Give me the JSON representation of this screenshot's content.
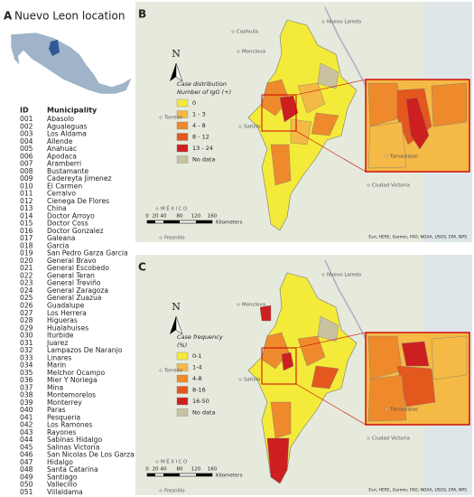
{
  "panel_a": {
    "label": "A",
    "title": "Nuevo Leon location",
    "table": {
      "header": [
        "ID",
        "Municipality"
      ],
      "rows": [
        [
          "001",
          "Abasolo"
        ],
        [
          "002",
          "Agualeguas"
        ],
        [
          "003",
          "Los Aldama"
        ],
        [
          "004",
          "Allende"
        ],
        [
          "005",
          "Anahuac"
        ],
        [
          "006",
          "Apodaca"
        ],
        [
          "007",
          "Aramberri"
        ],
        [
          "008",
          "Bustamante"
        ],
        [
          "009",
          "Cadereyta Jimenez"
        ],
        [
          "010",
          "El Carmen"
        ],
        [
          "011",
          "Cerralvo"
        ],
        [
          "012",
          "Cienega De Flores"
        ],
        [
          "013",
          "China"
        ],
        [
          "014",
          "Doctor Arroyo"
        ],
        [
          "015",
          "Doctor Coss"
        ],
        [
          "016",
          "Doctor Gonzalez"
        ],
        [
          "017",
          "Galeana"
        ],
        [
          "018",
          "Garcia"
        ],
        [
          "019",
          "San Pedro Garza Garcia"
        ],
        [
          "020",
          "General Bravo"
        ],
        [
          "021",
          "General Escobedo"
        ],
        [
          "022",
          "General Teran"
        ],
        [
          "023",
          "General Treviño"
        ],
        [
          "024",
          "General Zaragoza"
        ],
        [
          "025",
          "General Zuazua"
        ],
        [
          "026",
          "Guadalupe"
        ],
        [
          "027",
          "Los Herrera"
        ],
        [
          "028",
          "Higueras"
        ],
        [
          "029",
          "Hualahuises"
        ],
        [
          "030",
          "Iturbide"
        ],
        [
          "031",
          "Juarez"
        ],
        [
          "032",
          "Lampazos De Naranjo"
        ],
        [
          "033",
          "Linares"
        ],
        [
          "034",
          "Marin"
        ],
        [
          "035",
          "Melchor Ocampo"
        ],
        [
          "036",
          "Mier Y Noriega"
        ],
        [
          "037",
          "Mina"
        ],
        [
          "038",
          "Montemorelos"
        ],
        [
          "039",
          "Monterrey"
        ],
        [
          "040",
          "Paras"
        ],
        [
          "041",
          "Pesqueria"
        ],
        [
          "042",
          "Los Ramones"
        ],
        [
          "043",
          "Rayones"
        ],
        [
          "044",
          "Sabinas Hidalgo"
        ],
        [
          "045",
          "Salinas Victoria"
        ],
        [
          "046",
          "San Nicolas De Los Garza"
        ],
        [
          "047",
          "Hidalgo"
        ],
        [
          "048",
          "Santa Catarina"
        ],
        [
          "049",
          "Santiago"
        ],
        [
          "050",
          "Vallecillo"
        ],
        [
          "051",
          "Villaldama"
        ]
      ]
    }
  },
  "panel_b": {
    "label": "B",
    "legend": {
      "title": "Case distribution",
      "subtitle": "Number of IgG (+)",
      "items": [
        {
          "label": "0",
          "color": "#f4ea3a"
        },
        {
          "label": "1 - 3",
          "color": "#f5b945"
        },
        {
          "label": "4 - 8",
          "color": "#ee8a2c"
        },
        {
          "label": "8 - 12",
          "color": "#e4571d"
        },
        {
          "label": "13 - 24",
          "color": "#cd1f1f"
        },
        {
          "label": "No data",
          "color": "#c9c2a2"
        }
      ]
    },
    "places": [
      "Coahuila",
      "Nuevo Laredo",
      "Monclova",
      "Torreón",
      "Saltillo",
      "Tamaulipas",
      "Ciudad Victoria",
      "MÉXICO",
      "Fresnillo"
    ],
    "north": "N",
    "scale": {
      "ticks": [
        "0",
        "20",
        "40",
        "80",
        "120",
        "160"
      ],
      "unit": "Kilometers"
    },
    "attribution": "Esri, HERE, Garmin, FAO, NOAA, USGS, EPA, NPS"
  },
  "panel_c": {
    "label": "C",
    "legend": {
      "title": "Case frequency",
      "subtitle": "(%)",
      "items": [
        {
          "label": "0-1",
          "color": "#f4ea3a"
        },
        {
          "label": "1-4",
          "color": "#f5b945"
        },
        {
          "label": "4-8",
          "color": "#ee8a2c"
        },
        {
          "label": "8-16",
          "color": "#e4571d"
        },
        {
          "label": "16-50",
          "color": "#cd1f1f"
        },
        {
          "label": "No data",
          "color": "#c9c2a2"
        }
      ]
    },
    "places": [
      "Nuevo Laredo",
      "Monclova",
      "Torreón",
      "Saltillo",
      "Tamaulipas",
      "Ciudad Victoria",
      "MÉXICO",
      "Fresnillo"
    ],
    "north": "N",
    "scale": {
      "ticks": [
        "0",
        "20",
        "40",
        "80",
        "120",
        "160"
      ],
      "unit": "Kilometers"
    },
    "attribution": "Esri, HERE, Garmin, FAO, NOAA, USGS, EPA, NPS"
  }
}
